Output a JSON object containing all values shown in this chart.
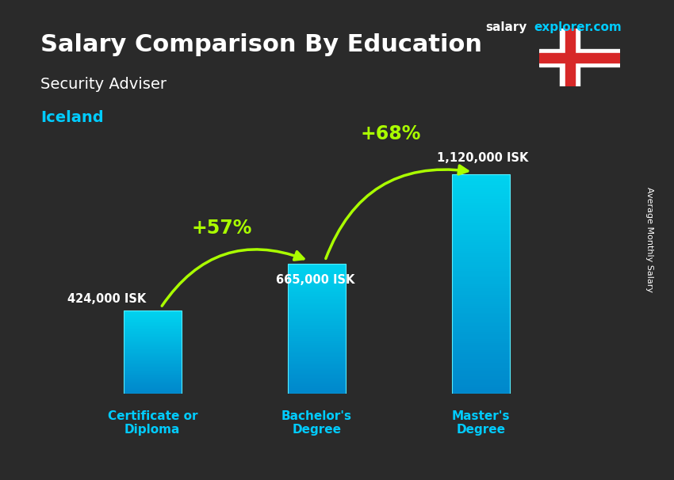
{
  "title_main": "Salary Comparison By Education",
  "title_sub": "Security Adviser",
  "title_country": "Iceland",
  "watermark": "salaryexplorer.com",
  "sidebar_label": "Average Monthly Salary",
  "categories": [
    "Certificate or\nDiploma",
    "Bachelor's\nDegree",
    "Master's\nDegree"
  ],
  "values": [
    424000,
    665000,
    1120000
  ],
  "value_labels": [
    "424,000 ISK",
    "665,000 ISK",
    "1,120,000 ISK"
  ],
  "pct_labels": [
    "+57%",
    "+68%"
  ],
  "bar_color_top": "#00d4f0",
  "bar_color_bottom": "#0088cc",
  "bg_color": "#2a2a2a",
  "title_color": "#ffffff",
  "subtitle_color": "#ffffff",
  "country_color": "#00ccff",
  "watermark_salary_color": "#ffffff",
  "watermark_explorer_color": "#00ccff",
  "value_label_color": "#ffffff",
  "pct_color": "#aaff00",
  "category_color": "#00ccff",
  "ylim": [
    0,
    1350000
  ],
  "bar_width": 0.35
}
